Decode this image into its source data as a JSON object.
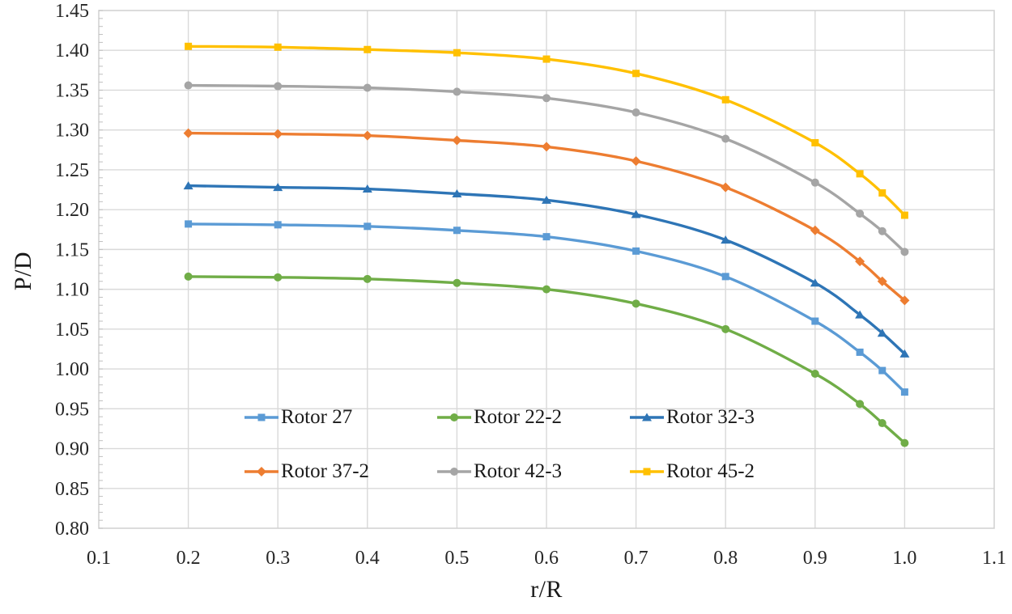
{
  "chart_data": {
    "type": "line",
    "title": "",
    "xlabel": "r/R",
    "ylabel": "P/D",
    "xlim": [
      0.1,
      1.1
    ],
    "ylim": [
      0.8,
      1.45
    ],
    "xticks": [
      0.1,
      0.2,
      0.3,
      0.4,
      0.5,
      0.6,
      0.7,
      0.8,
      0.9,
      1.0,
      1.1
    ],
    "xtick_labels": [
      "0.1",
      "0.2",
      "0.3",
      "0.4",
      "0.5",
      "0.6",
      "0.7",
      "0.8",
      "0.9",
      "1.0",
      "1.1"
    ],
    "yticks": [
      0.8,
      0.85,
      0.9,
      0.95,
      1.0,
      1.05,
      1.1,
      1.15,
      1.2,
      1.25,
      1.3,
      1.35,
      1.4,
      1.45
    ],
    "ytick_labels": [
      "0.80",
      "0.85",
      "0.90",
      "0.95",
      "1.00",
      "1.05",
      "1.10",
      "1.15",
      "1.20",
      "1.25",
      "1.30",
      "1.35",
      "1.40",
      "1.45"
    ],
    "y_minor_step": 0.01,
    "grid": true,
    "grid_color": "#D9D9D9",
    "border_color": "#D0D0D0",
    "minor_tick_color": "#BFBFBF",
    "axis_text_color": "#262626",
    "line_smoothing": true,
    "legend_position": "inside-bottom",
    "x": [
      0.2,
      0.3,
      0.4,
      0.5,
      0.6,
      0.7,
      0.8,
      0.9,
      0.95,
      0.975,
      1.0
    ],
    "series": [
      {
        "name": "Rotor 27",
        "color": "#5B9BD5",
        "marker": "square",
        "values": [
          1.182,
          1.181,
          1.179,
          1.174,
          1.166,
          1.148,
          1.116,
          1.06,
          1.021,
          0.998,
          0.971
        ]
      },
      {
        "name": "Rotor 22-2",
        "color": "#70AD47",
        "marker": "circle",
        "values": [
          1.116,
          1.115,
          1.113,
          1.108,
          1.1,
          1.082,
          1.05,
          0.994,
          0.956,
          0.932,
          0.907
        ]
      },
      {
        "name": "Rotor 32-3",
        "color": "#2E75B6",
        "marker": "triangle",
        "values": [
          1.23,
          1.228,
          1.226,
          1.22,
          1.212,
          1.194,
          1.162,
          1.108,
          1.068,
          1.045,
          1.019
        ]
      },
      {
        "name": "Rotor 37-2",
        "color": "#ED7D31",
        "marker": "diamond",
        "values": [
          1.296,
          1.295,
          1.293,
          1.287,
          1.279,
          1.261,
          1.228,
          1.174,
          1.135,
          1.11,
          1.086
        ]
      },
      {
        "name": "Rotor 42-3",
        "color": "#A5A5A5",
        "marker": "circle",
        "values": [
          1.356,
          1.355,
          1.353,
          1.348,
          1.34,
          1.322,
          1.289,
          1.234,
          1.195,
          1.173,
          1.147
        ]
      },
      {
        "name": "Rotor 45-2",
        "color": "#FFC000",
        "marker": "square",
        "values": [
          1.405,
          1.404,
          1.401,
          1.397,
          1.389,
          1.371,
          1.338,
          1.284,
          1.245,
          1.221,
          1.193
        ]
      }
    ],
    "legend_rows": [
      [
        "Rotor 27",
        "Rotor 22-2",
        "Rotor 32-3"
      ],
      [
        "Rotor 37-2",
        "Rotor 42-3",
        "Rotor 45-2"
      ]
    ]
  }
}
